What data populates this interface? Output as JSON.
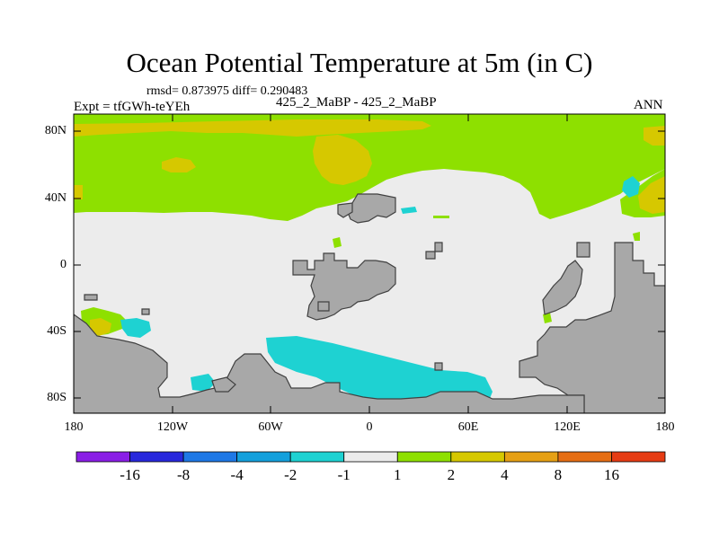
{
  "title": "Ocean Potential Temperature at 5m (in C)",
  "stats": "rmsd= 0.873975 diff= 0.290483",
  "experiment": "Expt = tfGWh-teYEh",
  "cases": "425_2_MaBP - 425_2_MaBP",
  "season": "ANN",
  "lat_ticks": [
    "80N",
    "40N",
    "0",
    "40S",
    "80S"
  ],
  "lon_ticks": [
    "180",
    "120W",
    "60W",
    "0",
    "60E",
    "120E",
    "180"
  ],
  "colorbar": {
    "colors": [
      "#8a1ee6",
      "#2828dc",
      "#1e78e6",
      "#14a0dc",
      "#1ed2d2",
      "#ececec",
      "#8ee000",
      "#d6c800",
      "#e6a014",
      "#e66e14",
      "#e63c14"
    ],
    "labels": [
      "-16",
      "-8",
      "-4",
      "-2",
      "-1",
      "1",
      "2",
      "4",
      "8",
      "16"
    ]
  },
  "map_colors": {
    "land": "#a8a8a8",
    "near_zero": "#ececec",
    "warm_2": "#8ee000",
    "warm_4": "#d6c800",
    "cool_1": "#1ed2d2"
  }
}
